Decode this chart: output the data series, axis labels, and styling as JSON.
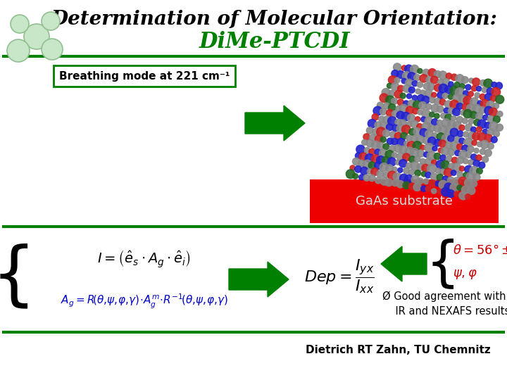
{
  "title_line1": "Determination of Molecular Orientation:",
  "title_line2": "DiMe-PTCDI",
  "title_line1_color": "#000000",
  "title_line2_color": "#008000",
  "breathing_mode_text": "Breathing mode at 221 cm⁻¹",
  "gaas_text": "GaAs substrate",
  "gaas_bg_color": "#ee0000",
  "gaas_text_color": "#dddddd",
  "citation": "Dietrich RT Zahn, TU Chemnitz",
  "arrow_color": "#008000",
  "bg_color": "#ffffff",
  "border_color": "#008000",
  "result_color": "#cc0000",
  "formula_color": "#000000",
  "ag_color": "#0000cc"
}
